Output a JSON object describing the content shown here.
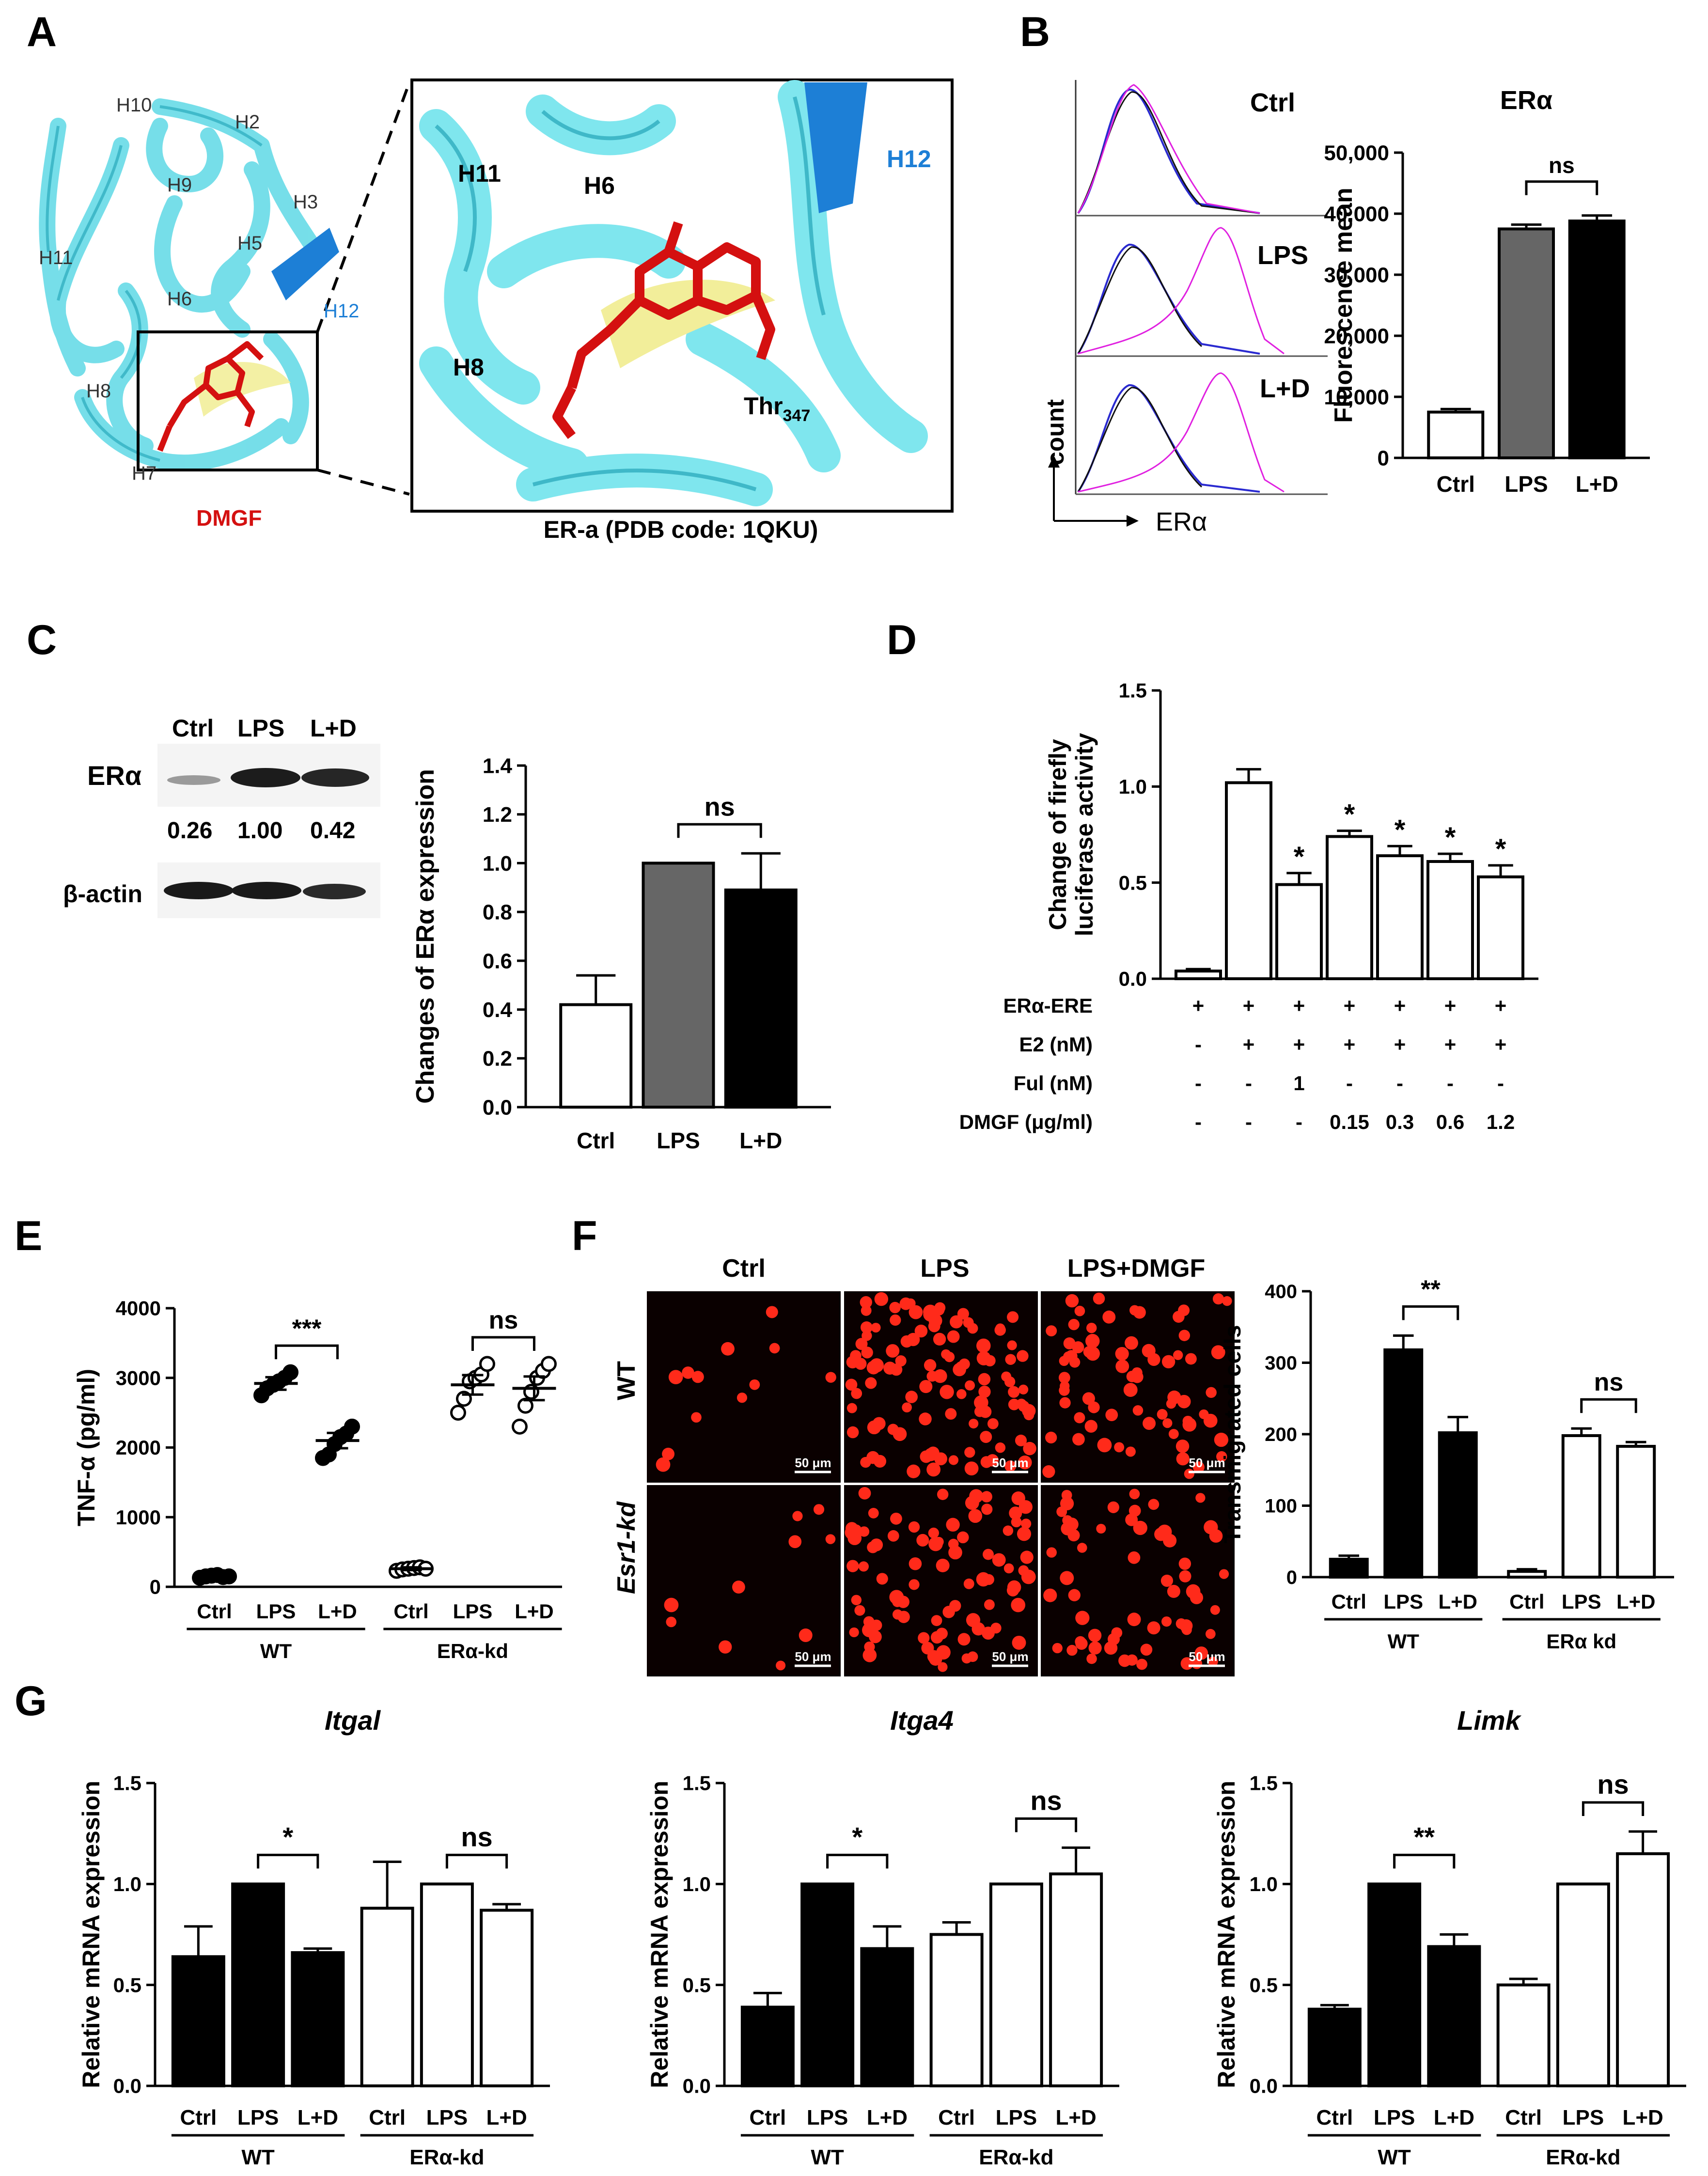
{
  "panels": {
    "A": {
      "letter": "A",
      "structure_labels": [
        "H10",
        "H2",
        "H9",
        "H3",
        "H11",
        "H6",
        "H5",
        "H12",
        "H8",
        "H7"
      ],
      "ligand_label": "DMGF",
      "zoom_labels": [
        "H11",
        "H6",
        "H12",
        "H8"
      ],
      "residue_label": "Thr",
      "residue_sub": "347",
      "caption": "ER-a (PDB code: 1QKU)"
    },
    "B": {
      "letter": "B",
      "histogram_labels": [
        "Ctrl",
        "LPS",
        "L+D"
      ],
      "axis_y": "count",
      "axis_x": "ERα"
    },
    "C": {
      "letter": "C",
      "blot_lanes": [
        "Ctrl",
        "LPS",
        "L+D"
      ],
      "blot_rows": [
        "ERα",
        "β-actin"
      ],
      "blot_values": [
        "0.26",
        "1.00",
        "0.42"
      ]
    },
    "D": {
      "letter": "D"
    },
    "E": {
      "letter": "E"
    },
    "F": {
      "letter": "F",
      "image_cols": [
        "Ctrl",
        "LPS",
        "LPS+DMGF"
      ],
      "image_rows": [
        "WT",
        "Esr1-kd"
      ],
      "scalebar": "50 μm"
    },
    "G": {
      "letter": "G"
    }
  },
  "colors": {
    "ribbon": "#7fe6ee",
    "ribbon_dark": "#39b8c8",
    "helix12": "#1d7fd6",
    "ligand": "#d41010",
    "sheet": "#f2ee9a",
    "fluor_bg": "#0a0000",
    "fluor_cell": "#ff2a1a",
    "hist_blue": "#2a2ad0",
    "hist_magenta": "#e020e0",
    "bar_gray": "#666666",
    "bar_black": "#000000"
  },
  "chart_data": [
    {
      "id": "B",
      "type": "bar",
      "title": "ERα",
      "ylabel": "Fluorescence mean",
      "ylim": [
        0,
        50000
      ],
      "yticks": [
        0,
        10000,
        20000,
        30000,
        40000,
        50000
      ],
      "ytick_labels": [
        "0",
        "10,000",
        "20,000",
        "30,000",
        "40,000",
        "50,000"
      ],
      "categories": [
        "Ctrl",
        "LPS",
        "L+D"
      ],
      "values": [
        7500,
        37500,
        38800
      ],
      "errors": [
        500,
        700,
        900
      ],
      "fills": [
        "white",
        "gray",
        "black"
      ],
      "sig": [
        {
          "from": 1,
          "to": 2,
          "label": "ns"
        }
      ]
    },
    {
      "id": "C",
      "type": "bar",
      "ylabel": "Changes of ERα expression",
      "ylim": [
        0,
        1.4
      ],
      "yticks": [
        0,
        0.2,
        0.4,
        0.6,
        0.8,
        1.0,
        1.2,
        1.4
      ],
      "ytick_labels": [
        "0.0",
        "0.2",
        "0.4",
        "0.6",
        "0.8",
        "1.0",
        "1.2",
        "1.4"
      ],
      "categories": [
        "Ctrl",
        "LPS",
        "L+D"
      ],
      "values": [
        0.42,
        1.0,
        0.89
      ],
      "errors": [
        0.12,
        0,
        0.15
      ],
      "fills": [
        "white",
        "gray",
        "black"
      ],
      "sig": [
        {
          "from": 1,
          "to": 2,
          "label": "ns"
        }
      ]
    },
    {
      "id": "D",
      "type": "bar",
      "ylabel_lines": [
        "Change of firefly",
        "luciferase activity"
      ],
      "ylim": [
        0,
        1.5
      ],
      "yticks": [
        0,
        0.5,
        1.0,
        1.5
      ],
      "ytick_labels": [
        "0.0",
        "0.5",
        "1.0",
        "1.5"
      ],
      "values": [
        0.04,
        1.02,
        0.49,
        0.74,
        0.64,
        0.61,
        0.53
      ],
      "errors": [
        0.01,
        0.07,
        0.06,
        0.03,
        0.05,
        0.04,
        0.06
      ],
      "stars": [
        "",
        "",
        "*",
        "*",
        "*",
        "*",
        "*"
      ],
      "fills": [
        "white",
        "white",
        "white",
        "white",
        "white",
        "white",
        "white"
      ],
      "condition_rows": [
        {
          "label": "ERα-ERE",
          "values": [
            "+",
            "+",
            "+",
            "+",
            "+",
            "+",
            "+"
          ]
        },
        {
          "label": "E2 (nM)",
          "values": [
            "-",
            "+",
            "+",
            "+",
            "+",
            "+",
            "+"
          ]
        },
        {
          "label": "Ful (nM)",
          "values": [
            "-",
            "-",
            "1",
            "-",
            "-",
            "-",
            "-"
          ]
        },
        {
          "label": "DMGF (μg/ml)",
          "values": [
            "-",
            "-",
            "-",
            "0.15",
            "0.3",
            "0.6",
            "1.2"
          ]
        }
      ]
    },
    {
      "id": "E",
      "type": "scatter",
      "ylabel": "TNF-α (pg/ml)",
      "ylim": [
        0,
        4000
      ],
      "yticks": [
        0,
        1000,
        2000,
        3000,
        4000
      ],
      "ytick_labels": [
        "0",
        "1000",
        "2000",
        "3000",
        "4000"
      ],
      "categories": [
        "Ctrl",
        "LPS",
        "L+D",
        "Ctrl",
        "LPS",
        "L+D"
      ],
      "groups": [
        "WT",
        "ERα-kd"
      ],
      "means": [
        150,
        2920,
        2100,
        260,
        2900,
        2850
      ],
      "sems": [
        20,
        90,
        110,
        20,
        140,
        170
      ],
      "points": [
        [
          130,
          150,
          160,
          170,
          140,
          150
        ],
        [
          2750,
          2850,
          2900,
          2950,
          3000,
          3080
        ],
        [
          1850,
          1900,
          2050,
          2150,
          2200,
          2300
        ],
        [
          230,
          250,
          260,
          270,
          280,
          260
        ],
        [
          2500,
          2700,
          2950,
          3000,
          3050,
          3200
        ],
        [
          2300,
          2600,
          2800,
          3000,
          3100,
          3200
        ]
      ],
      "fills": [
        "black",
        "black",
        "black",
        "white",
        "white",
        "white"
      ],
      "sig": [
        {
          "from": 1,
          "to": 2,
          "label": "***"
        },
        {
          "from": 4,
          "to": 5,
          "label": "ns"
        }
      ]
    },
    {
      "id": "F",
      "type": "bar",
      "ylabel": "Transmigrated cells",
      "ylim": [
        0,
        400
      ],
      "yticks": [
        0,
        100,
        200,
        300,
        400
      ],
      "ytick_labels": [
        "0",
        "100",
        "200",
        "300",
        "400"
      ],
      "categories": [
        "Ctrl",
        "LPS",
        "L+D",
        "Ctrl",
        "LPS",
        "L+D"
      ],
      "groups": [
        "WT",
        "ERα kd"
      ],
      "values": [
        25,
        318,
        202,
        8,
        198,
        183
      ],
      "errors": [
        5,
        20,
        22,
        3,
        10,
        6
      ],
      "fills": [
        "black",
        "black",
        "black",
        "white",
        "white",
        "white"
      ],
      "sig": [
        {
          "from": 1,
          "to": 2,
          "label": "**"
        },
        {
          "from": 4,
          "to": 5,
          "label": "ns"
        }
      ]
    },
    {
      "id": "G1",
      "type": "bar",
      "title": "Itgal",
      "ylabel": "Relative mRNA expression",
      "ylim": [
        0,
        1.5
      ],
      "yticks": [
        0,
        0.5,
        1.0,
        1.5
      ],
      "ytick_labels": [
        "0.0",
        "0.5",
        "1.0",
        "1.5"
      ],
      "categories": [
        "Ctrl",
        "LPS",
        "L+D",
        "Ctrl",
        "LPS",
        "L+D"
      ],
      "groups": [
        "WT",
        "ERα-kd"
      ],
      "values": [
        0.64,
        1.0,
        0.66,
        0.88,
        1.0,
        0.87
      ],
      "errors": [
        0.15,
        0,
        0.02,
        0.23,
        0,
        0.03
      ],
      "fills": [
        "black",
        "black",
        "black",
        "white",
        "white",
        "white"
      ],
      "sig": [
        {
          "from": 1,
          "to": 2,
          "label": "*"
        },
        {
          "from": 4,
          "to": 5,
          "label": "ns"
        }
      ]
    },
    {
      "id": "G2",
      "type": "bar",
      "title": "Itga4",
      "ylabel": "Relative mRNA expression",
      "ylim": [
        0,
        1.5
      ],
      "yticks": [
        0,
        0.5,
        1.0,
        1.5
      ],
      "ytick_labels": [
        "0.0",
        "0.5",
        "1.0",
        "1.5"
      ],
      "categories": [
        "Ctrl",
        "LPS",
        "L+D",
        "Ctrl",
        "LPS",
        "L+D"
      ],
      "groups": [
        "WT",
        "ERα-kd"
      ],
      "values": [
        0.39,
        1.0,
        0.68,
        0.75,
        1.0,
        1.05
      ],
      "errors": [
        0.07,
        0,
        0.11,
        0.06,
        0,
        0.13
      ],
      "fills": [
        "black",
        "black",
        "black",
        "white",
        "white",
        "white"
      ],
      "sig": [
        {
          "from": 1,
          "to": 2,
          "label": "*"
        },
        {
          "from": 4,
          "to": 5,
          "label": "ns"
        }
      ]
    },
    {
      "id": "G3",
      "type": "bar",
      "title": "Limk",
      "ylabel": "Relative mRNA expression",
      "ylim": [
        0,
        1.5
      ],
      "yticks": [
        0,
        0.5,
        1.0,
        1.5
      ],
      "ytick_labels": [
        "0.0",
        "0.5",
        "1.0",
        "1.5"
      ],
      "categories": [
        "Ctrl",
        "LPS",
        "L+D",
        "Ctrl",
        "LPS",
        "L+D"
      ],
      "groups": [
        "WT",
        "ERα-kd"
      ],
      "values": [
        0.38,
        1.0,
        0.69,
        0.5,
        1.0,
        1.15
      ],
      "errors": [
        0.02,
        0,
        0.06,
        0.03,
        0,
        0.11
      ],
      "fills": [
        "black",
        "black",
        "black",
        "white",
        "white",
        "white"
      ],
      "sig": [
        {
          "from": 1,
          "to": 2,
          "label": "**"
        },
        {
          "from": 4,
          "to": 5,
          "label": "ns"
        }
      ]
    }
  ]
}
